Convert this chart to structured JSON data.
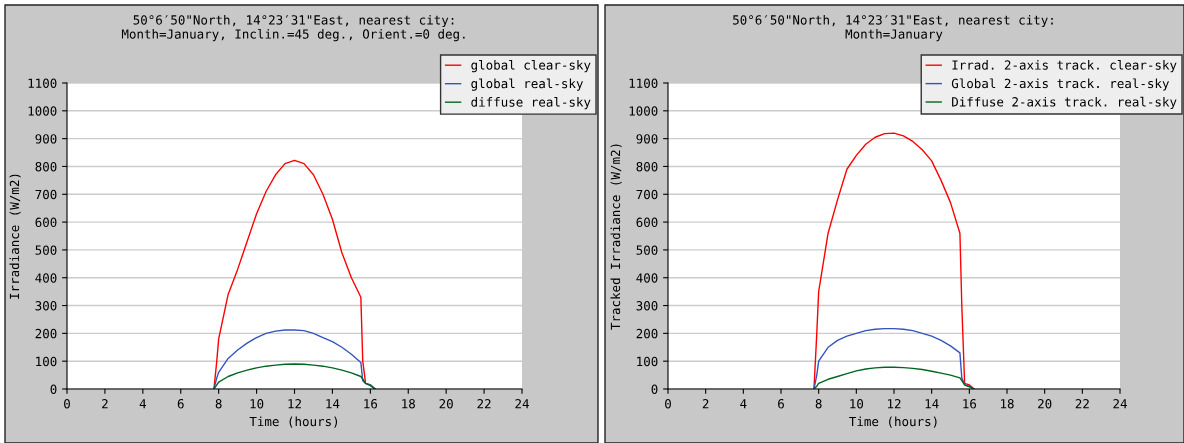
{
  "chart_data": [
    {
      "type": "line",
      "title": "50°6′50\"North, 14°23′31\"East, nearest city:\nMonth=January, Inclin.=45 deg., Orient.=0 deg.",
      "xlabel": "Time (hours)",
      "ylabel": "Irradiance (W/m2)",
      "xlim": [
        0,
        24
      ],
      "xticks": [
        0,
        2,
        4,
        6,
        8,
        10,
        12,
        14,
        16,
        18,
        20,
        22,
        24
      ],
      "ylim": [
        0,
        1100
      ],
      "yticks": [
        0,
        100,
        200,
        300,
        400,
        500,
        600,
        700,
        800,
        900,
        1000,
        1100
      ],
      "grid": "y",
      "legend": "top right",
      "x": [
        7.75,
        7.9,
        8.0,
        8.5,
        9.0,
        9.5,
        10.0,
        10.5,
        11.0,
        11.5,
        12.0,
        12.5,
        13.0,
        13.5,
        14.0,
        14.5,
        15.0,
        15.5,
        15.6,
        15.75,
        16.0,
        16.25
      ],
      "series": [
        {
          "name": "global clear-sky",
          "color": "#ff0000",
          "values": [
            0,
            100,
            180,
            340,
            430,
            530,
            630,
            710,
            770,
            810,
            822,
            810,
            770,
            700,
            610,
            490,
            400,
            330,
            100,
            20,
            15,
            0
          ]
        },
        {
          "name": "global real-sky",
          "color": "#3355bb",
          "values": [
            0,
            40,
            60,
            110,
            140,
            165,
            185,
            200,
            208,
            212,
            212,
            210,
            200,
            185,
            170,
            150,
            125,
            95,
            30,
            20,
            15,
            0
          ]
        },
        {
          "name": "diffuse real-sky",
          "color": "#006622",
          "values": [
            0,
            15,
            25,
            45,
            58,
            68,
            76,
            82,
            86,
            89,
            90,
            89,
            86,
            82,
            76,
            68,
            58,
            45,
            35,
            20,
            12,
            0
          ]
        }
      ]
    },
    {
      "type": "line",
      "title": "50°6′50\"North, 14°23′31\"East, nearest city:\nMonth=January",
      "xlabel": "Time (hours)",
      "ylabel": "Tracked Irradiance (W/m2)",
      "xlim": [
        0,
        24
      ],
      "xticks": [
        0,
        2,
        4,
        6,
        8,
        10,
        12,
        14,
        16,
        18,
        20,
        22,
        24
      ],
      "ylim": [
        0,
        1100
      ],
      "yticks": [
        0,
        100,
        200,
        300,
        400,
        500,
        600,
        700,
        800,
        900,
        1000,
        1100
      ],
      "grid": "y",
      "legend": "top right",
      "x": [
        7.75,
        7.9,
        8.0,
        8.5,
        9.0,
        9.5,
        10.0,
        10.5,
        11.0,
        11.5,
        12.0,
        12.5,
        13.0,
        13.5,
        14.0,
        14.5,
        15.0,
        15.5,
        15.6,
        15.75,
        16.0,
        16.25
      ],
      "series": [
        {
          "name": "Irrad. 2-axis track. clear-sky",
          "color": "#ff0000",
          "values": [
            0,
            200,
            350,
            560,
            680,
            790,
            840,
            880,
            905,
            918,
            920,
            910,
            890,
            860,
            820,
            750,
            670,
            560,
            300,
            20,
            15,
            0
          ]
        },
        {
          "name": "Global 2-axis track. real-sky",
          "color": "#3355bb",
          "values": [
            0,
            50,
            100,
            150,
            175,
            190,
            200,
            210,
            215,
            217,
            217,
            215,
            210,
            200,
            190,
            175,
            155,
            130,
            40,
            15,
            10,
            0
          ]
        },
        {
          "name": "Diffuse 2-axis track. real-sky",
          "color": "#006622",
          "values": [
            0,
            10,
            20,
            35,
            45,
            55,
            65,
            72,
            76,
            78,
            78,
            77,
            74,
            70,
            64,
            57,
            50,
            40,
            30,
            15,
            8,
            0
          ]
        }
      ]
    }
  ]
}
